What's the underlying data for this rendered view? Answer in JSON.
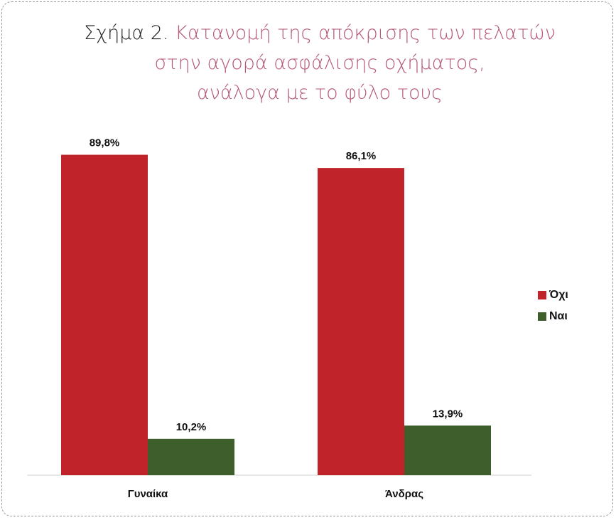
{
  "title": {
    "prefix": "Σχήμα 2.",
    "line1": "Κατανομή της απόκρισης των πελατών",
    "line2": "στην αγορά ασφάλισης οχήματος,",
    "line3": "ανάλογα με το φύλο τους"
  },
  "chart_data": {
    "type": "bar",
    "title": "Σχήμα 2. Κατανομή της απόκρισης των πελατών στην αγορά ασφάλισης οχήματος, ανάλογα με το φύλο τους",
    "categories": [
      "Γυναίκα",
      "Άνδρας"
    ],
    "series": [
      {
        "name": "Όχι",
        "values": [
          89.8,
          86.1
        ],
        "labels": [
          "89,8%",
          "86,1%"
        ],
        "color": "#c0232a"
      },
      {
        "name": "Ναι",
        "values": [
          10.2,
          13.9
        ],
        "labels": [
          "10,2%",
          "13,9%"
        ],
        "color": "#3e5f2b"
      }
    ],
    "ylim": [
      0,
      100
    ],
    "grid": false,
    "legend_position": "right"
  }
}
